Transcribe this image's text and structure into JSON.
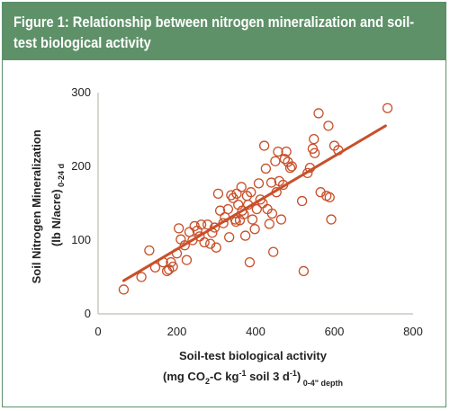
{
  "figure": {
    "title": "Figure 1: Relationship between nitrogen mineralization and soil-test biological activity"
  },
  "chart_data": {
    "type": "scatter",
    "title": "Figure 1: Relationship between nitrogen mineralization and soil-test biological activity",
    "xlabel": "Soil-test biological activity",
    "xlabel_units": "(mg CO2-C kg-1 soil 3 d-1) 0-4\" depth",
    "ylabel": "Soil Nitrogen Mineralization (lb N/acre) 0-24 d",
    "xlim": [
      0,
      800
    ],
    "ylim": [
      0,
      300
    ],
    "xticks": [
      0,
      200,
      400,
      600,
      800
    ],
    "yticks": [
      0,
      100,
      200,
      300
    ],
    "grid": false,
    "marker_color": "#c8502a",
    "trendline_color": "#c8502a",
    "points": [
      {
        "x": 65,
        "y": 33
      },
      {
        "x": 110,
        "y": 50
      },
      {
        "x": 130,
        "y": 86
      },
      {
        "x": 145,
        "y": 63
      },
      {
        "x": 165,
        "y": 70
      },
      {
        "x": 175,
        "y": 58
      },
      {
        "x": 180,
        "y": 60
      },
      {
        "x": 185,
        "y": 70
      },
      {
        "x": 190,
        "y": 64
      },
      {
        "x": 200,
        "y": 82
      },
      {
        "x": 205,
        "y": 116
      },
      {
        "x": 210,
        "y": 101
      },
      {
        "x": 220,
        "y": 93
      },
      {
        "x": 225,
        "y": 73
      },
      {
        "x": 232,
        "y": 111
      },
      {
        "x": 240,
        "y": 100
      },
      {
        "x": 245,
        "y": 119
      },
      {
        "x": 252,
        "y": 113
      },
      {
        "x": 258,
        "y": 105
      },
      {
        "x": 262,
        "y": 121
      },
      {
        "x": 270,
        "y": 97
      },
      {
        "x": 278,
        "y": 121
      },
      {
        "x": 285,
        "y": 95
      },
      {
        "x": 290,
        "y": 110
      },
      {
        "x": 296,
        "y": 117
      },
      {
        "x": 300,
        "y": 90
      },
      {
        "x": 305,
        "y": 163
      },
      {
        "x": 310,
        "y": 140
      },
      {
        "x": 318,
        "y": 123
      },
      {
        "x": 322,
        "y": 131
      },
      {
        "x": 330,
        "y": 142
      },
      {
        "x": 333,
        "y": 104
      },
      {
        "x": 338,
        "y": 161
      },
      {
        "x": 343,
        "y": 157
      },
      {
        "x": 348,
        "y": 128
      },
      {
        "x": 350,
        "y": 125
      },
      {
        "x": 352,
        "y": 163
      },
      {
        "x": 356,
        "y": 148
      },
      {
        "x": 360,
        "y": 127
      },
      {
        "x": 364,
        "y": 172
      },
      {
        "x": 366,
        "y": 140
      },
      {
        "x": 370,
        "y": 135
      },
      {
        "x": 374,
        "y": 106
      },
      {
        "x": 378,
        "y": 160
      },
      {
        "x": 381,
        "y": 148
      },
      {
        "x": 385,
        "y": 70
      },
      {
        "x": 388,
        "y": 165
      },
      {
        "x": 392,
        "y": 128
      },
      {
        "x": 398,
        "y": 115
      },
      {
        "x": 403,
        "y": 142
      },
      {
        "x": 408,
        "y": 177
      },
      {
        "x": 412,
        "y": 155
      },
      {
        "x": 418,
        "y": 150
      },
      {
        "x": 422,
        "y": 228
      },
      {
        "x": 426,
        "y": 197
      },
      {
        "x": 430,
        "y": 142
      },
      {
        "x": 435,
        "y": 122
      },
      {
        "x": 440,
        "y": 178
      },
      {
        "x": 442,
        "y": 136
      },
      {
        "x": 445,
        "y": 84
      },
      {
        "x": 450,
        "y": 207
      },
      {
        "x": 453,
        "y": 165
      },
      {
        "x": 457,
        "y": 220
      },
      {
        "x": 460,
        "y": 180
      },
      {
        "x": 465,
        "y": 128
      },
      {
        "x": 470,
        "y": 175
      },
      {
        "x": 474,
        "y": 210
      },
      {
        "x": 478,
        "y": 220
      },
      {
        "x": 482,
        "y": 206
      },
      {
        "x": 488,
        "y": 198
      },
      {
        "x": 492,
        "y": 200
      },
      {
        "x": 518,
        "y": 153
      },
      {
        "x": 522,
        "y": 58
      },
      {
        "x": 532,
        "y": 191
      },
      {
        "x": 538,
        "y": 198
      },
      {
        "x": 545,
        "y": 224
      },
      {
        "x": 548,
        "y": 237
      },
      {
        "x": 550,
        "y": 218
      },
      {
        "x": 560,
        "y": 272
      },
      {
        "x": 565,
        "y": 165
      },
      {
        "x": 580,
        "y": 160
      },
      {
        "x": 585,
        "y": 255
      },
      {
        "x": 588,
        "y": 158
      },
      {
        "x": 592,
        "y": 128
      },
      {
        "x": 600,
        "y": 228
      },
      {
        "x": 610,
        "y": 222
      },
      {
        "x": 735,
        "y": 279
      }
    ],
    "trendline": {
      "x": [
        65,
        730
      ],
      "y": [
        45,
        255
      ]
    }
  }
}
